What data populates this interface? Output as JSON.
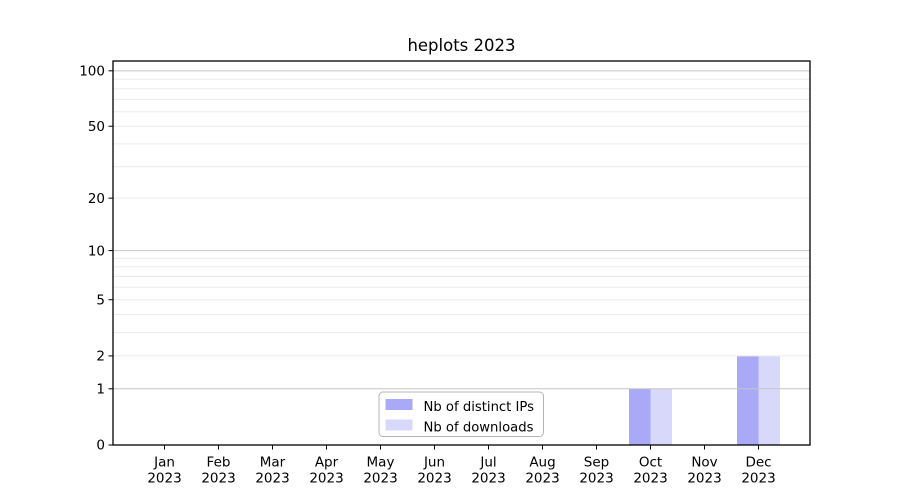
{
  "figure": {
    "title": "heplots 2023"
  },
  "chart_data": {
    "type": "bar",
    "title": "heplots 2023",
    "categories": [
      "Jan",
      "Feb",
      "Mar",
      "Apr",
      "May",
      "Jun",
      "Jul",
      "Aug",
      "Sep",
      "Oct",
      "Nov",
      "Dec"
    ],
    "category_year": "2023",
    "series": [
      {
        "name": "Nb of distinct IPs",
        "color": "#a9a9f7",
        "values": [
          0,
          0,
          0,
          0,
          0,
          0,
          0,
          0,
          0,
          1,
          0,
          2
        ]
      },
      {
        "name": "Nb of downloads",
        "color": "#d8d8fa",
        "values": [
          0,
          0,
          0,
          0,
          0,
          0,
          0,
          0,
          0,
          1,
          0,
          2
        ]
      }
    ],
    "xlabel": "",
    "ylabel": "",
    "yscale": "log1p",
    "ylim": [
      0,
      113
    ],
    "yticks": [
      0,
      1,
      2,
      5,
      10,
      20,
      50,
      100
    ],
    "grid_major": [
      1,
      10,
      100
    ],
    "grid_minor": [
      2,
      3,
      4,
      5,
      6,
      7,
      8,
      9,
      20,
      30,
      40,
      50,
      60,
      70,
      80,
      90
    ],
    "grid": "on",
    "legend_position": "lower center"
  },
  "style": {
    "axis_color": "#000000",
    "text_color": "#000000",
    "grid_major_color": "#c6c6c6",
    "grid_minor_color": "#ececec",
    "legend_border_color": "#b4b4b4",
    "legend_bg": "#ffffff",
    "background": "#ffffff"
  }
}
